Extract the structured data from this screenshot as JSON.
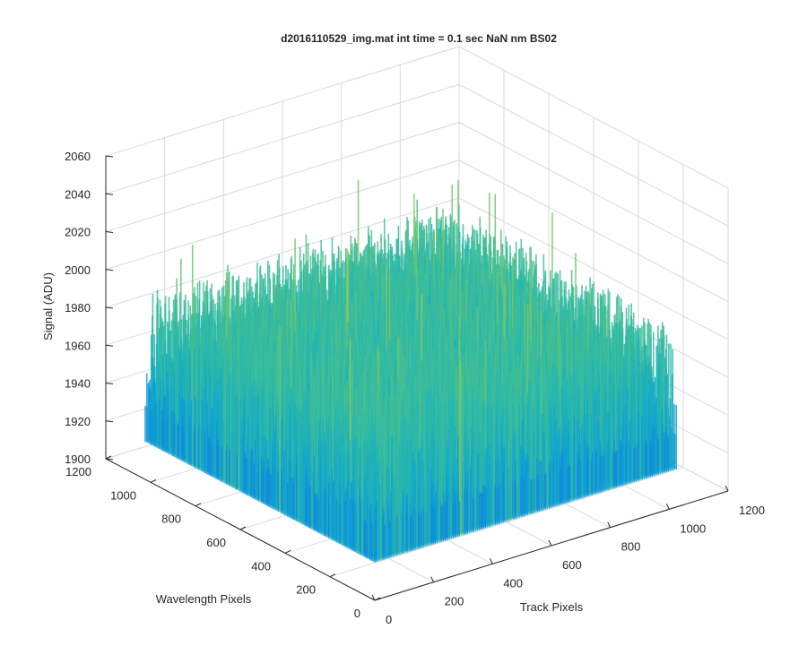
{
  "chart_data": {
    "type": "surface",
    "title": "d2016110529_img.mat int time = 0.1 sec  NaN nm BS02",
    "zlabel": "Signal (ADU)",
    "xlabel": "Track Pixels",
    "ylabel": "Wavelength Pixels",
    "xlim": [
      0,
      1200
    ],
    "ylim": [
      0,
      1200
    ],
    "zlim": [
      1900,
      2060
    ],
    "x_ticks": [
      "0",
      "200",
      "400",
      "600",
      "800",
      "1000",
      "1200"
    ],
    "y_ticks": [
      "0",
      "200",
      "400",
      "600",
      "800",
      "1000",
      "1200"
    ],
    "z_ticks": [
      "1900",
      "1920",
      "1940",
      "1960",
      "1980",
      "2000",
      "2020",
      "2040",
      "2060"
    ],
    "data_x_range": [
      0,
      1024
    ],
    "data_y_range": [
      0,
      1024
    ],
    "z_typical_range": [
      1920,
      2000
    ],
    "z_peak": 2052,
    "grid": true,
    "colormap": "parula"
  }
}
